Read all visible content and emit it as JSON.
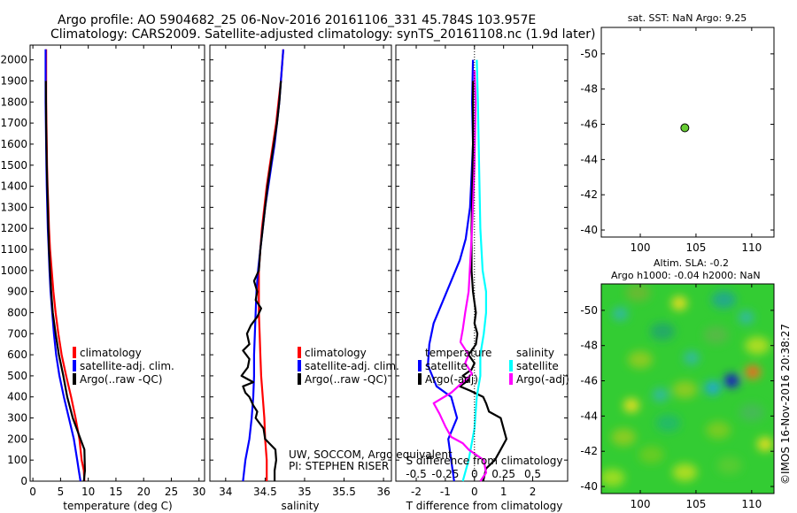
{
  "header": {
    "line1": "Argo profile: AO 5904682_25 06-Nov-2016 20161106_331 45.784S 103.957E",
    "line2": "Climatology: CARS2009. Satellite-adjusted climatology: synTS_20161108.nc (1.9d later)"
  },
  "colors": {
    "climatology": "#ff0000",
    "satellite": "#0000ff",
    "argo": "#000000",
    "sal_satellite": "#00ffff",
    "sal_argo": "#ff00ff",
    "marker": "#66cc33"
  },
  "legend_temp": [
    "climatology",
    "satellite-adj. clim.",
    "Argo(..raw -QC)"
  ],
  "legend_sal": [
    "climatology",
    "satellite-adj. clim.",
    "Argo(..raw -QC)"
  ],
  "legend_diff": {
    "temp_title": "temperature",
    "sal_title": "salinity",
    "items_temp": [
      "satellite",
      "Argo(-adj)"
    ],
    "items_sal": [
      "satellite",
      "Argo(-adj)"
    ]
  },
  "notes": {
    "pi_line1": "UW, SOCCOM, Argo equivalent",
    "pi_line2": "PI: STEPHEN RISER"
  },
  "sst_title": "sat. SST: NaN Argo: 9.25",
  "sla_title1": "Altim. SLA: -0.2",
  "sla_title2": "Argo h1000: -0.04 h2000: NaN",
  "credit": "©IMOS 16-Nov-2016 20:38:27",
  "chart_data": [
    {
      "type": "line",
      "xlabel": "temperature (deg C)",
      "ylabel": "",
      "xlim": [
        -0.5,
        31
      ],
      "ylim": [
        2070,
        0
      ],
      "xticks": [
        0,
        5,
        10,
        15,
        20,
        25,
        30
      ],
      "yticks": [
        0,
        100,
        200,
        300,
        400,
        500,
        600,
        700,
        800,
        900,
        1000,
        1100,
        1200,
        1300,
        1400,
        1500,
        1600,
        1700,
        1800,
        1900,
        2000
      ],
      "series": [
        {
          "name": "climatology",
          "x": [
            9.3,
            9.2,
            8.8,
            8.4,
            7.7,
            6.9,
            6.0,
            5.2,
            4.6,
            4.1,
            3.7,
            3.4,
            3.1,
            2.9,
            2.8,
            2.65,
            2.55,
            2.5,
            2.45,
            2.4,
            2.4
          ],
          "y": [
            0,
            50,
            100,
            200,
            300,
            400,
            500,
            600,
            700,
            800,
            900,
            1000,
            1100,
            1200,
            1300,
            1400,
            1500,
            1600,
            1700,
            1800,
            2050
          ]
        },
        {
          "name": "satellite-adj. clim.",
          "x": [
            8.6,
            8.3,
            8.0,
            7.4,
            6.5,
            5.6,
            4.8,
            4.2,
            3.8,
            3.5,
            3.2,
            3.0,
            2.85,
            2.7,
            2.6,
            2.5,
            2.45,
            2.4,
            2.35,
            2.3,
            2.3
          ],
          "y": [
            0,
            50,
            100,
            200,
            300,
            400,
            500,
            600,
            700,
            800,
            900,
            1000,
            1100,
            1200,
            1300,
            1400,
            1500,
            1600,
            1700,
            1800,
            2050
          ]
        },
        {
          "name": "Argo(..raw -QC)",
          "x": [
            9.2,
            9.4,
            9.3,
            8.6,
            7.2,
            6.2,
            5.5,
            4.7,
            4.1,
            3.6,
            3.3,
            3.1,
            2.9,
            2.8,
            2.7,
            2.6,
            2.5,
            2.45,
            2.4,
            2.35
          ],
          "y": [
            0,
            50,
            150,
            200,
            300,
            400,
            500,
            600,
            700,
            800,
            900,
            1000,
            1100,
            1200,
            1300,
            1400,
            1500,
            1600,
            1700,
            1900
          ]
        }
      ]
    },
    {
      "type": "line",
      "xlabel": "salinity",
      "ylabel": "",
      "xlim": [
        33.8,
        36.1
      ],
      "ylim": [
        2070,
        0
      ],
      "xticks": [
        34,
        34.5,
        35,
        35.5,
        36
      ],
      "series": [
        {
          "name": "climatology",
          "x": [
            34.52,
            34.52,
            34.5,
            34.49,
            34.47,
            34.45,
            34.44,
            34.43,
            34.42,
            34.42,
            34.42,
            34.44,
            34.46,
            34.49,
            34.52,
            34.56,
            34.6,
            34.64,
            34.67,
            34.7,
            34.72,
            34.73
          ],
          "y": [
            0,
            100,
            200,
            300,
            400,
            500,
            600,
            700,
            800,
            900,
            1000,
            1100,
            1200,
            1300,
            1400,
            1500,
            1600,
            1700,
            1800,
            1900,
            2000,
            2050
          ]
        },
        {
          "name": "satellite-adj. clim.",
          "x": [
            34.22,
            34.25,
            34.3,
            34.33,
            34.35,
            34.36,
            34.36,
            34.37,
            34.38,
            34.39,
            34.41,
            34.44,
            34.47,
            34.5,
            34.54,
            34.58,
            34.62,
            34.65,
            34.68,
            34.7,
            34.72,
            34.73
          ],
          "y": [
            0,
            100,
            200,
            300,
            400,
            500,
            600,
            700,
            800,
            900,
            1000,
            1100,
            1200,
            1300,
            1400,
            1500,
            1600,
            1700,
            1800,
            1900,
            2000,
            2050
          ]
        },
        {
          "name": "Argo(..raw -QC)",
          "x": [
            34.62,
            34.62,
            34.64,
            34.63,
            34.5,
            34.48,
            34.38,
            34.4,
            34.35,
            34.3,
            34.25,
            34.22,
            34.35,
            34.2,
            34.28,
            34.3,
            34.22,
            34.3,
            34.27,
            34.32,
            34.4,
            34.45,
            34.38,
            34.4,
            34.36,
            34.42,
            34.44,
            34.47,
            34.5,
            34.53,
            34.57,
            34.61,
            34.65,
            34.68,
            34.7
          ],
          "y": [
            0,
            50,
            100,
            150,
            200,
            250,
            300,
            330,
            360,
            400,
            420,
            450,
            470,
            500,
            540,
            580,
            620,
            650,
            700,
            740,
            780,
            820,
            860,
            900,
            950,
            1000,
            1100,
            1200,
            1300,
            1400,
            1500,
            1600,
            1700,
            1800,
            1900
          ]
        }
      ]
    },
    {
      "type": "line",
      "xlabel": "T difference from climatology",
      "title": "S difference from climatology",
      "xlim": [
        -2.7,
        3.2
      ],
      "ylim": [
        2070,
        0
      ],
      "xticks": [
        -2,
        -1,
        0,
        1,
        2
      ],
      "xticks_top": [
        -0.5,
        -0.25,
        0,
        0.25,
        0.5
      ],
      "series": [
        {
          "name": "temperature satellite",
          "x": [
            -0.7,
            -0.8,
            -0.9,
            -0.6,
            -0.8,
            -1.3,
            -1.6,
            -1.55,
            -1.4,
            -1.1,
            -0.8,
            -0.5,
            -0.3,
            -0.15,
            -0.1,
            -0.05,
            -0.08,
            -0.05
          ],
          "y": [
            0,
            100,
            200,
            300,
            400,
            450,
            550,
            650,
            750,
            850,
            950,
            1050,
            1150,
            1300,
            1450,
            1600,
            1800,
            2000
          ]
        },
        {
          "name": "temperature Argo(-adj)",
          "x": [
            0.3,
            0.4,
            0.7,
            0.9,
            1.1,
            0.9,
            0.5,
            0.4,
            0.3,
            -0.15,
            -0.5,
            -0.2,
            -0.4,
            -0.1,
            0.0,
            -0.2,
            0.05,
            0.1,
            0.0,
            0.05,
            -0.05,
            -0.1,
            -0.1,
            -0.05,
            -0.05
          ],
          "y": [
            0,
            60,
            100,
            150,
            200,
            300,
            330,
            370,
            400,
            430,
            450,
            480,
            500,
            530,
            560,
            600,
            650,
            700,
            750,
            800,
            900,
            1000,
            1200,
            1600,
            1900
          ]
        },
        {
          "name": "salinity satellite",
          "x": [
            -0.1,
            -0.05,
            0.0,
            0.02,
            0.05,
            0.05,
            0.08,
            0.1,
            0.1,
            0.07,
            0.05,
            0.04,
            0.03,
            0.02
          ],
          "y": [
            0,
            100,
            250,
            400,
            500,
            600,
            700,
            800,
            900,
            1000,
            1200,
            1500,
            1800,
            2000
          ]
        },
        {
          "name": "salinity Argo(-adj)",
          "x": [
            0.05,
            0.1,
            0.08,
            -0.05,
            -0.1,
            -0.2,
            -0.25,
            -0.3,
            -0.35,
            -0.2,
            -0.08,
            -0.02,
            -0.08,
            -0.05,
            -0.12,
            -0.1,
            -0.08,
            -0.05,
            -0.04,
            -0.02,
            0.0,
            0.01,
            0.0
          ],
          "y": [
            0,
            40,
            100,
            150,
            180,
            210,
            260,
            320,
            370,
            420,
            480,
            510,
            560,
            600,
            660,
            720,
            800,
            900,
            1000,
            1200,
            1500,
            1800,
            1950
          ]
        }
      ]
    },
    {
      "type": "scatter",
      "xlim": [
        96.5,
        112
      ],
      "ylim": [
        -51.5,
        -39.6
      ],
      "xticks": [
        100,
        105,
        110
      ],
      "yticks": [
        -40,
        -42,
        -44,
        -46,
        -48,
        -50
      ],
      "points": [
        {
          "x": 104.0,
          "y": -45.8
        }
      ]
    },
    {
      "type": "heatmap",
      "xlim": [
        96.5,
        112
      ],
      "ylim": [
        -51.5,
        -39.6
      ],
      "xticks": [
        100,
        105,
        110
      ],
      "yticks": [
        -40,
        -42,
        -44,
        -46,
        -48,
        -50
      ],
      "blobs": [
        {
          "x": 99.2,
          "y": -44.6,
          "v": 0.3
        },
        {
          "x": 108.2,
          "y": -46.0,
          "v": -0.6
        },
        {
          "x": 106.5,
          "y": -45.6,
          "v": -0.3
        },
        {
          "x": 101.8,
          "y": -45.2,
          "v": -0.2
        },
        {
          "x": 110.1,
          "y": -46.5,
          "v": 0.4
        },
        {
          "x": 104.6,
          "y": -47.3,
          "v": -0.2
        },
        {
          "x": 98.2,
          "y": -49.8,
          "v": -0.2
        },
        {
          "x": 103.5,
          "y": -50.4,
          "v": 0.2
        },
        {
          "x": 109.5,
          "y": -49.6,
          "v": -0.15
        },
        {
          "x": 111.2,
          "y": -42.4,
          "v": 0.2
        }
      ]
    }
  ]
}
